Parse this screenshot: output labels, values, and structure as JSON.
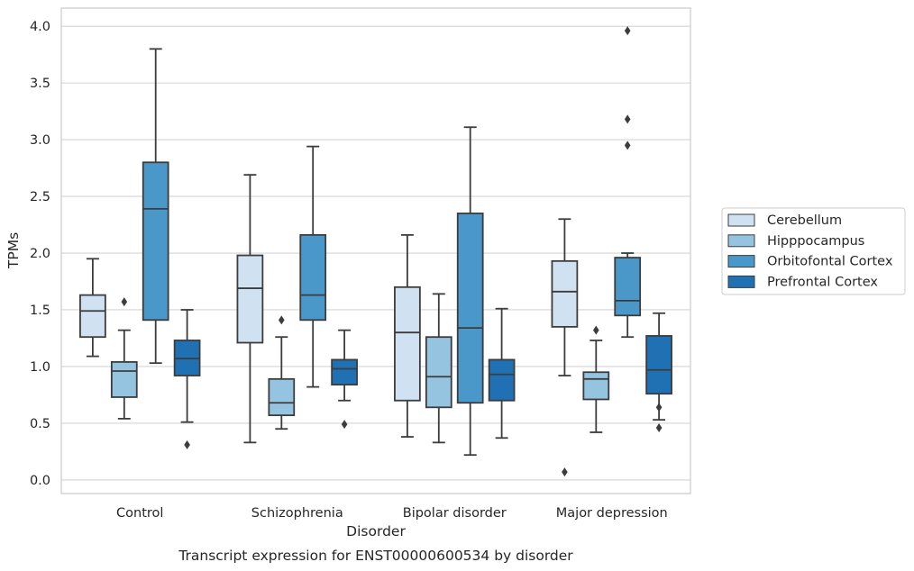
{
  "caption": "Transcript expression for ENST00000600534 by disorder",
  "chart_data": {
    "type": "boxplot",
    "xlabel": "Disorder",
    "ylabel": "TPMs",
    "ylim": [
      -0.12,
      4.16
    ],
    "yticks": [
      0.0,
      0.5,
      1.0,
      1.5,
      2.0,
      2.5,
      3.0,
      3.5,
      4.0
    ],
    "ytick_labels": [
      "0.0",
      "0.5",
      "1.0",
      "1.5",
      "2.0",
      "2.5",
      "3.0",
      "3.5",
      "4.0"
    ],
    "grid": "horizontal",
    "legend_position": "right",
    "categories": [
      "Control",
      "Schizophrenia",
      "Bipolar disorder",
      "Major depression"
    ],
    "series": [
      {
        "name": "Cerebellum",
        "color": "#d0e1f2",
        "boxes": [
          {
            "whislo": 1.09,
            "q1": 1.26,
            "med": 1.49,
            "q3": 1.63,
            "whishi": 1.95,
            "fliers": []
          },
          {
            "whislo": 0.33,
            "q1": 1.21,
            "med": 1.69,
            "q3": 1.98,
            "whishi": 2.69,
            "fliers": []
          },
          {
            "whislo": 0.38,
            "q1": 0.7,
            "med": 1.3,
            "q3": 1.7,
            "whishi": 2.16,
            "fliers": []
          },
          {
            "whislo": 0.92,
            "q1": 1.35,
            "med": 1.66,
            "q3": 1.93,
            "whishi": 2.3,
            "fliers": [
              0.07
            ]
          }
        ]
      },
      {
        "name": "Hipppocampus",
        "color": "#94c4df",
        "boxes": [
          {
            "whislo": 0.54,
            "q1": 0.73,
            "med": 0.96,
            "q3": 1.04,
            "whishi": 1.32,
            "fliers": [
              1.57
            ]
          },
          {
            "whislo": 0.45,
            "q1": 0.57,
            "med": 0.68,
            "q3": 0.89,
            "whishi": 1.26,
            "fliers": [
              1.41
            ]
          },
          {
            "whislo": 0.33,
            "q1": 0.64,
            "med": 0.91,
            "q3": 1.26,
            "whishi": 1.64,
            "fliers": []
          },
          {
            "whislo": 0.42,
            "q1": 0.71,
            "med": 0.89,
            "q3": 0.95,
            "whishi": 1.23,
            "fliers": [
              1.32
            ]
          }
        ]
      },
      {
        "name": "Orbitofontal Cortex",
        "color": "#4a98c9",
        "boxes": [
          {
            "whislo": 1.03,
            "q1": 1.41,
            "med": 2.39,
            "q3": 2.8,
            "whishi": 3.8,
            "fliers": []
          },
          {
            "whislo": 0.82,
            "q1": 1.41,
            "med": 1.63,
            "q3": 2.16,
            "whishi": 2.94,
            "fliers": []
          },
          {
            "whislo": 0.22,
            "q1": 0.68,
            "med": 1.34,
            "q3": 2.35,
            "whishi": 3.11,
            "fliers": []
          },
          {
            "whislo": 1.26,
            "q1": 1.45,
            "med": 1.58,
            "q3": 1.96,
            "whishi": 2.0,
            "fliers": [
              2.95,
              3.18,
              3.96
            ]
          }
        ]
      },
      {
        "name": "Prefrontal Cortex",
        "color": "#2070b4",
        "boxes": [
          {
            "whislo": 0.51,
            "q1": 0.92,
            "med": 1.07,
            "q3": 1.23,
            "whishi": 1.5,
            "fliers": [
              0.31
            ]
          },
          {
            "whislo": 0.7,
            "q1": 0.84,
            "med": 0.98,
            "q3": 1.06,
            "whishi": 1.32,
            "fliers": [
              0.49
            ]
          },
          {
            "whislo": 0.37,
            "q1": 0.7,
            "med": 0.93,
            "q3": 1.06,
            "whishi": 1.51,
            "fliers": []
          },
          {
            "whislo": 0.53,
            "q1": 0.76,
            "med": 0.97,
            "q3": 1.27,
            "whishi": 1.47,
            "fliers": [
              0.46,
              0.64
            ]
          }
        ]
      }
    ]
  }
}
